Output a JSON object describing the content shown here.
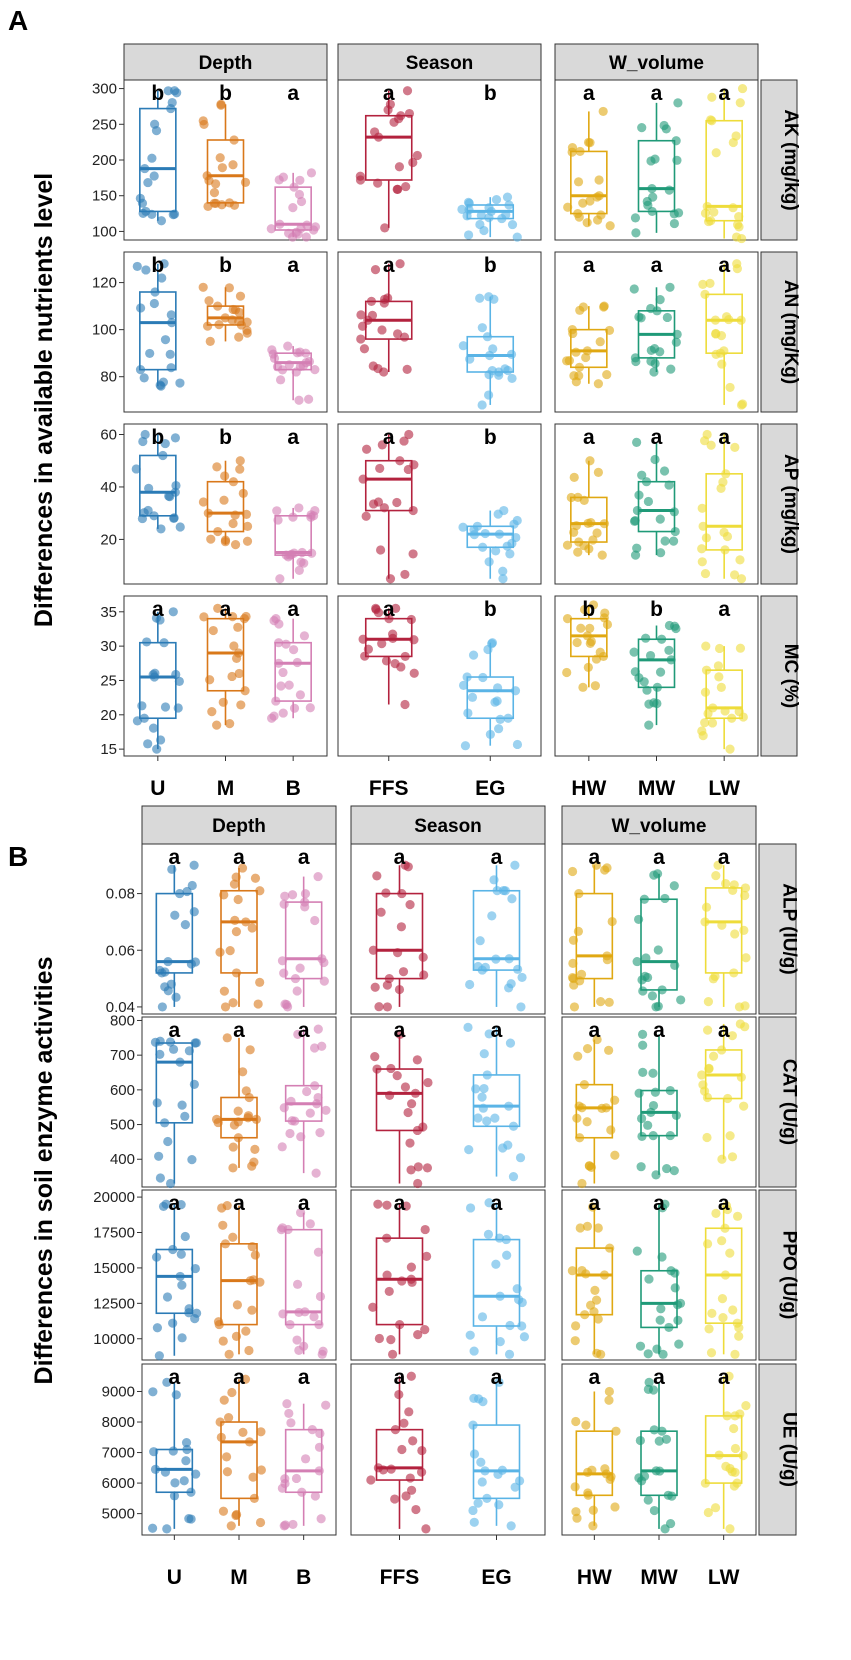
{
  "figure": {
    "label_a": "A",
    "label_b": "B"
  },
  "chart_data": [
    {
      "type": "box",
      "panel": "A",
      "ylabel": "Differences in available nutrients level",
      "facet_cols": [
        "Depth",
        "Season",
        "W_volume"
      ],
      "facet_categories": [
        [
          "U",
          "M",
          "B"
        ],
        [
          "FFS",
          "EG"
        ],
        [
          "HW",
          "MW",
          "LW"
        ]
      ],
      "category_colors": {
        "U": "#2b7bb6",
        "M": "#d9781a",
        "B": "#d47fb4",
        "FFS": "#b3223e",
        "EG": "#5ab4e6",
        "HW": "#e0a812",
        "MW": "#1f9a78",
        "LW": "#eedc3a"
      },
      "rows": [
        {
          "label": "AK (mg/kg)",
          "ylim": [
            88,
            312
          ],
          "yticks": [
            100,
            150,
            200,
            250,
            300
          ],
          "cells": [
            [
              {
                "cat": "U",
                "min": 115,
                "q1": 128,
                "median": 188,
                "q3": 272,
                "max": 297,
                "sig": "b"
              },
              {
                "cat": "M",
                "min": 135,
                "q1": 140,
                "median": 178,
                "q3": 228,
                "max": 278,
                "sig": "b"
              },
              {
                "cat": "B",
                "min": 92,
                "q1": 102,
                "median": 110,
                "q3": 162,
                "max": 182,
                "sig": "a"
              }
            ],
            [
              {
                "cat": "FFS",
                "min": 105,
                "q1": 172,
                "median": 232,
                "q3": 262,
                "max": 297,
                "sig": "a"
              },
              {
                "cat": "EG",
                "min": 92,
                "q1": 118,
                "median": 128,
                "q3": 137,
                "max": 148,
                "sig": "b"
              }
            ],
            [
              {
                "cat": "HW",
                "min": 108,
                "q1": 125,
                "median": 150,
                "q3": 212,
                "max": 268,
                "sig": "a"
              },
              {
                "cat": "MW",
                "min": 98,
                "q1": 128,
                "median": 160,
                "q3": 227,
                "max": 280,
                "sig": "a"
              },
              {
                "cat": "LW",
                "min": 90,
                "q1": 115,
                "median": 135,
                "q3": 255,
                "max": 300,
                "sig": "a"
              }
            ]
          ]
        },
        {
          "label": "AN (mg/Kg)",
          "ylim": [
            65,
            133
          ],
          "yticks": [
            80,
            100,
            120
          ],
          "cells": [
            [
              {
                "cat": "U",
                "min": 76,
                "q1": 83,
                "median": 103,
                "q3": 116,
                "max": 128,
                "sig": "b"
              },
              {
                "cat": "M",
                "min": 95,
                "q1": 102,
                "median": 105,
                "q3": 110,
                "max": 118,
                "sig": "b"
              },
              {
                "cat": "B",
                "min": 70,
                "q1": 83,
                "median": 86,
                "q3": 90,
                "max": 93,
                "sig": "a"
              }
            ],
            [
              {
                "cat": "FFS",
                "min": 82,
                "q1": 96,
                "median": 104,
                "q3": 112,
                "max": 128,
                "sig": "a"
              },
              {
                "cat": "EG",
                "min": 68,
                "q1": 82,
                "median": 89,
                "q3": 97,
                "max": 114,
                "sig": "b"
              }
            ],
            [
              {
                "cat": "HW",
                "min": 77,
                "q1": 84,
                "median": 91,
                "q3": 100,
                "max": 110,
                "sig": "a"
              },
              {
                "cat": "MW",
                "min": 82,
                "q1": 88,
                "median": 98,
                "q3": 108,
                "max": 118,
                "sig": "a"
              },
              {
                "cat": "LW",
                "min": 68,
                "q1": 90,
                "median": 104,
                "q3": 115,
                "max": 128,
                "sig": "a"
              }
            ]
          ]
        },
        {
          "label": "AP (mg/kg)",
          "ylim": [
            3,
            64
          ],
          "yticks": [
            20,
            40,
            60
          ],
          "cells": [
            [
              {
                "cat": "U",
                "min": 24,
                "q1": 29,
                "median": 38,
                "q3": 52,
                "max": 60,
                "sig": "b"
              },
              {
                "cat": "M",
                "min": 18,
                "q1": 23,
                "median": 30,
                "q3": 42,
                "max": 50,
                "sig": "b"
              },
              {
                "cat": "B",
                "min": 5,
                "q1": 14,
                "median": 15,
                "q3": 29,
                "max": 32,
                "sig": "a"
              }
            ],
            [
              {
                "cat": "FFS",
                "min": 5,
                "q1": 31,
                "median": 43,
                "q3": 50,
                "max": 60,
                "sig": "a"
              },
              {
                "cat": "EG",
                "min": 5,
                "q1": 17,
                "median": 22,
                "q3": 25,
                "max": 31,
                "sig": "b"
              }
            ],
            [
              {
                "cat": "HW",
                "min": 14,
                "q1": 19,
                "median": 26,
                "q3": 36,
                "max": 50,
                "sig": "a"
              },
              {
                "cat": "MW",
                "min": 14,
                "q1": 23,
                "median": 31,
                "q3": 42,
                "max": 57,
                "sig": "a"
              },
              {
                "cat": "LW",
                "min": 5,
                "q1": 16,
                "median": 25,
                "q3": 45,
                "max": 60,
                "sig": "a"
              }
            ]
          ]
        },
        {
          "label": "MC (%)",
          "ylim": [
            14,
            37.3
          ],
          "yticks": [
            15,
            20,
            25,
            30,
            35
          ],
          "cells": [
            [
              {
                "cat": "U",
                "min": 15,
                "q1": 19.5,
                "median": 25.5,
                "q3": 30.5,
                "max": 35,
                "sig": "a"
              },
              {
                "cat": "M",
                "min": 18.5,
                "q1": 23.5,
                "median": 29,
                "q3": 34,
                "max": 35.5,
                "sig": "a"
              },
              {
                "cat": "B",
                "min": 19.5,
                "q1": 22,
                "median": 27.5,
                "q3": 30.5,
                "max": 34,
                "sig": "a"
              }
            ],
            [
              {
                "cat": "FFS",
                "min": 21.5,
                "q1": 28.5,
                "median": 31,
                "q3": 34,
                "max": 35.5,
                "sig": "a"
              },
              {
                "cat": "EG",
                "min": 15.5,
                "q1": 19.5,
                "median": 23.5,
                "q3": 25.5,
                "max": 30.5,
                "sig": "b"
              }
            ],
            [
              {
                "cat": "HW",
                "min": 24,
                "q1": 28.5,
                "median": 31.5,
                "q3": 34,
                "max": 36,
                "sig": "b"
              },
              {
                "cat": "MW",
                "min": 18.5,
                "q1": 24,
                "median": 28,
                "q3": 31,
                "max": 33,
                "sig": "b"
              },
              {
                "cat": "LW",
                "min": 15,
                "q1": 19.5,
                "median": 21,
                "q3": 26.5,
                "max": 30,
                "sig": "a"
              }
            ]
          ]
        }
      ]
    },
    {
      "type": "box",
      "panel": "B",
      "ylabel": "Differences in soil enzyme activities",
      "facet_cols": [
        "Depth",
        "Season",
        "W_volume"
      ],
      "facet_categories": [
        [
          "U",
          "M",
          "B"
        ],
        [
          "FFS",
          "EG"
        ],
        [
          "HW",
          "MW",
          "LW"
        ]
      ],
      "category_colors": {
        "U": "#2b7bb6",
        "M": "#d9781a",
        "B": "#d47fb4",
        "FFS": "#b3223e",
        "EG": "#5ab4e6",
        "HW": "#e0a812",
        "MW": "#1f9a78",
        "LW": "#eedc3a"
      },
      "rows": [
        {
          "label": "ALP (IU/g)",
          "ylim": [
            0.0375,
            0.0975
          ],
          "yticks": [
            "0.04",
            "0.06",
            "0.08"
          ],
          "ytick_values": [
            0.04,
            0.06,
            0.08
          ],
          "cells": [
            [
              {
                "cat": "U",
                "min": 0.04,
                "q1": 0.052,
                "median": 0.056,
                "q3": 0.08,
                "max": 0.09,
                "sig": "a"
              },
              {
                "cat": "M",
                "min": 0.04,
                "q1": 0.052,
                "median": 0.07,
                "q3": 0.081,
                "max": 0.089,
                "sig": "a"
              },
              {
                "cat": "B",
                "min": 0.04,
                "q1": 0.05,
                "median": 0.057,
                "q3": 0.077,
                "max": 0.086,
                "sig": "a"
              }
            ],
            [
              {
                "cat": "FFS",
                "min": 0.04,
                "q1": 0.05,
                "median": 0.06,
                "q3": 0.08,
                "max": 0.09,
                "sig": "a"
              },
              {
                "cat": "EG",
                "min": 0.04,
                "q1": 0.053,
                "median": 0.057,
                "q3": 0.081,
                "max": 0.09,
                "sig": "a"
              }
            ],
            [
              {
                "cat": "HW",
                "min": 0.04,
                "q1": 0.05,
                "median": 0.058,
                "q3": 0.08,
                "max": 0.09,
                "sig": "a"
              },
              {
                "cat": "MW",
                "min": 0.04,
                "q1": 0.046,
                "median": 0.056,
                "q3": 0.078,
                "max": 0.087,
                "sig": "a"
              },
              {
                "cat": "LW",
                "min": 0.04,
                "q1": 0.052,
                "median": 0.07,
                "q3": 0.082,
                "max": 0.09,
                "sig": "a"
              }
            ]
          ]
        },
        {
          "label": "CAT (U/g)",
          "ylim": [
            320,
            810
          ],
          "yticks": [
            400,
            500,
            600,
            700,
            800
          ],
          "cells": [
            [
              {
                "cat": "U",
                "min": 330,
                "q1": 505,
                "median": 680,
                "q3": 735,
                "max": 740,
                "sig": "a"
              },
              {
                "cat": "M",
                "min": 375,
                "q1": 462,
                "median": 515,
                "q3": 578,
                "max": 750,
                "sig": "a"
              },
              {
                "cat": "B",
                "min": 360,
                "q1": 510,
                "median": 560,
                "q3": 612,
                "max": 775,
                "sig": "a"
              }
            ],
            [
              {
                "cat": "FFS",
                "min": 330,
                "q1": 483,
                "median": 590,
                "q3": 660,
                "max": 760,
                "sig": "a"
              },
              {
                "cat": "EG",
                "min": 350,
                "q1": 495,
                "median": 553,
                "q3": 643,
                "max": 780,
                "sig": "a"
              }
            ],
            [
              {
                "cat": "HW",
                "min": 330,
                "q1": 462,
                "median": 548,
                "q3": 615,
                "max": 745,
                "sig": "a"
              },
              {
                "cat": "MW",
                "min": 355,
                "q1": 468,
                "median": 535,
                "q3": 598,
                "max": 760,
                "sig": "a"
              },
              {
                "cat": "LW",
                "min": 400,
                "q1": 575,
                "median": 643,
                "q3": 715,
                "max": 790,
                "sig": "a"
              }
            ]
          ]
        },
        {
          "label": "PPO (U/g)",
          "ylim": [
            8500,
            20500
          ],
          "yticks": [
            10000,
            12500,
            15000,
            17500,
            20000
          ],
          "cells": [
            [
              {
                "cat": "U",
                "min": 8800,
                "q1": 11800,
                "median": 14400,
                "q3": 16300,
                "max": 19500,
                "sig": "a"
              },
              {
                "cat": "M",
                "min": 8900,
                "q1": 11000,
                "median": 14100,
                "q3": 16700,
                "max": 19400,
                "sig": "a"
              },
              {
                "cat": "B",
                "min": 8900,
                "q1": 11000,
                "median": 11900,
                "q3": 17700,
                "max": 18900,
                "sig": "a"
              }
            ],
            [
              {
                "cat": "FFS",
                "min": 8900,
                "q1": 11000,
                "median": 14200,
                "q3": 17100,
                "max": 19500,
                "sig": "a"
              },
              {
                "cat": "EG",
                "min": 8900,
                "q1": 10900,
                "median": 13000,
                "q3": 17000,
                "max": 19600,
                "sig": "a"
              }
            ],
            [
              {
                "cat": "HW",
                "min": 8900,
                "q1": 11700,
                "median": 14500,
                "q3": 16400,
                "max": 19300,
                "sig": "a"
              },
              {
                "cat": "MW",
                "min": 8900,
                "q1": 10800,
                "median": 12500,
                "q3": 14800,
                "max": 19500,
                "sig": "a"
              },
              {
                "cat": "LW",
                "min": 8900,
                "q1": 11100,
                "median": 14500,
                "q3": 17800,
                "max": 19400,
                "sig": "a"
              }
            ]
          ]
        },
        {
          "label": "UE (U/g)",
          "ylim": [
            4300,
            9900
          ],
          "yticks": [
            5000,
            6000,
            7000,
            8000,
            9000
          ],
          "cells": [
            [
              {
                "cat": "U",
                "min": 4500,
                "q1": 5700,
                "median": 6450,
                "q3": 7100,
                "max": 9300,
                "sig": "a"
              },
              {
                "cat": "M",
                "min": 4600,
                "q1": 5500,
                "median": 7350,
                "q3": 8000,
                "max": 9400,
                "sig": "a"
              },
              {
                "cat": "B",
                "min": 4600,
                "q1": 5700,
                "median": 6400,
                "q3": 7750,
                "max": 8600,
                "sig": "a"
              }
            ],
            [
              {
                "cat": "FFS",
                "min": 4500,
                "q1": 6100,
                "median": 6500,
                "q3": 7750,
                "max": 9500,
                "sig": "a"
              },
              {
                "cat": "EG",
                "min": 4600,
                "q1": 5500,
                "median": 6400,
                "q3": 7900,
                "max": 9300,
                "sig": "a"
              }
            ],
            [
              {
                "cat": "HW",
                "min": 4600,
                "q1": 5600,
                "median": 6300,
                "q3": 7700,
                "max": 9000,
                "sig": "a"
              },
              {
                "cat": "MW",
                "min": 4500,
                "q1": 5600,
                "median": 6400,
                "q3": 7700,
                "max": 9300,
                "sig": "a"
              },
              {
                "cat": "LW",
                "min": 4500,
                "q1": 6000,
                "median": 6900,
                "q3": 8200,
                "max": 9500,
                "sig": "a"
              }
            ]
          ]
        }
      ]
    }
  ]
}
